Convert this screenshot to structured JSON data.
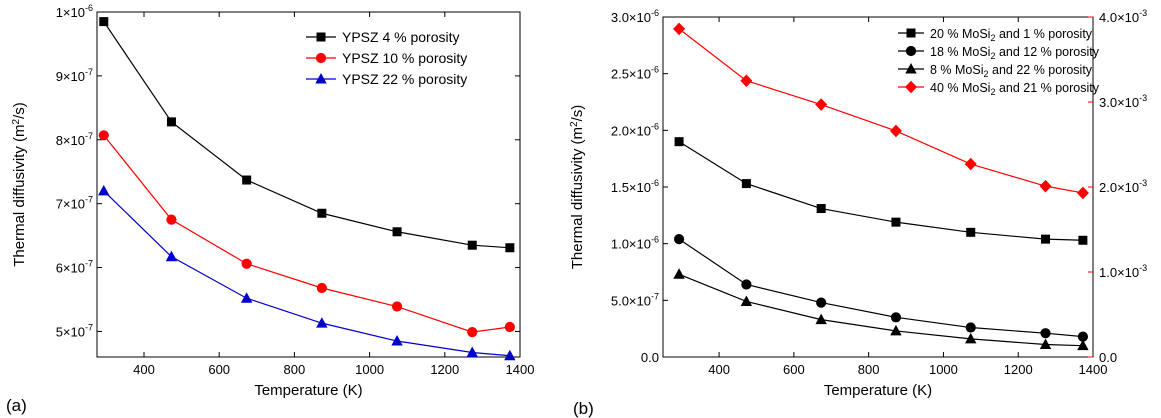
{
  "chart_data": [
    {
      "type": "line",
      "panel_label": "(a)",
      "xlabel": "Temperature (K)",
      "ylabel_main": "Thermal diffusivity (m",
      "ylabel_sup": "2",
      "ylabel_tail": "/s)",
      "xlim": [
        275,
        1400
      ],
      "ylim": [
        4.6e-07,
        1e-06
      ],
      "x_ticks": [
        400,
        600,
        800,
        1000,
        1200,
        1400
      ],
      "x_tick_labels": [
        "400",
        "600",
        "800",
        "1000",
        "1200",
        "1400"
      ],
      "y_ticks": [
        5e-07,
        6e-07,
        7e-07,
        8e-07,
        9e-07,
        1e-06
      ],
      "y_tick_mantissa": [
        "5×10",
        "6×10",
        "7×10",
        "8×10",
        "9×10",
        "1×10"
      ],
      "y_tick_exp": [
        "-7",
        "-7",
        "-7",
        "-7",
        "-7",
        "-6"
      ],
      "legend_position": "top-right",
      "series": [
        {
          "name": "YPSZ   4 % porosity",
          "color": "#000000",
          "marker": "square",
          "x": [
            293,
            473,
            673,
            873,
            1073,
            1273,
            1373
          ],
          "y": [
            9.85e-07,
            8.28e-07,
            7.37e-07,
            6.85e-07,
            6.56e-07,
            6.35e-07,
            6.31e-07
          ]
        },
        {
          "name": "YPSZ 10 % porosity",
          "color": "#ff0000",
          "marker": "circle",
          "x": [
            293,
            473,
            673,
            873,
            1073,
            1273,
            1373
          ],
          "y": [
            8.07e-07,
            6.75e-07,
            6.06e-07,
            5.68e-07,
            5.39e-07,
            4.99e-07,
            5.07e-07
          ]
        },
        {
          "name": "YPSZ 22 % porosity",
          "color": "#0000cc",
          "marker": "triangle",
          "x": [
            293,
            473,
            673,
            873,
            1073,
            1273,
            1373
          ],
          "y": [
            7.2e-07,
            6.17e-07,
            5.52e-07,
            5.13e-07,
            4.85e-07,
            4.67e-07,
            4.62e-07
          ]
        }
      ]
    },
    {
      "type": "line",
      "panel_label": "(b)",
      "xlabel": "Temperature (K)",
      "ylabel_main": "Thermal diffusivity (m",
      "ylabel_sup": "2",
      "ylabel_tail": "/s)",
      "xlim": [
        250,
        1400
      ],
      "ylim": [
        0,
        3e-06
      ],
      "y2lim": [
        0,
        0.004
      ],
      "x_ticks": [
        400,
        600,
        800,
        1000,
        1200,
        1400
      ],
      "x_tick_labels": [
        "400",
        "600",
        "800",
        "1000",
        "1200",
        "1400"
      ],
      "y_ticks": [
        0,
        5e-07,
        1e-06,
        1.5e-06,
        2e-06,
        2.5e-06,
        3e-06
      ],
      "y_tick_mantissa": [
        "0.0",
        "5.0×10",
        "1.0×10",
        "1.5×10",
        "2.0×10",
        "2.5×10",
        "3.0×10"
      ],
      "y_tick_exp": [
        "",
        "-7",
        "-6",
        "-6",
        "-6",
        "-6",
        "-6"
      ],
      "y2_ticks": [
        0,
        0.001,
        0.002,
        0.003,
        0.004
      ],
      "y2_tick_mantissa": [
        "0.0",
        "1.0×10",
        "2.0×10",
        "3.0×10",
        "4.0×10"
      ],
      "y2_tick_exp": [
        "",
        "-3",
        "-3",
        "-3",
        "-3"
      ],
      "y2_color": "#ff0000",
      "legend_position": "top-right",
      "series": [
        {
          "name_pre": "20 % MoSi",
          "name_sub": "2",
          "name_post": " and   1 % porosity",
          "color": "#000000",
          "marker": "square",
          "axis": "left",
          "x": [
            293,
            473,
            673,
            873,
            1073,
            1273,
            1373
          ],
          "y": [
            1.9e-06,
            1.53e-06,
            1.31e-06,
            1.19e-06,
            1.1e-06,
            1.04e-06,
            1.03e-06
          ]
        },
        {
          "name_pre": "18 % MoSi",
          "name_sub": "2",
          "name_post": " and 12 % porosity",
          "color": "#000000",
          "marker": "circle",
          "axis": "left",
          "x": [
            293,
            473,
            673,
            873,
            1073,
            1273,
            1373
          ],
          "y": [
            1.04e-06,
            6.4e-07,
            4.8e-07,
            3.5e-07,
            2.6e-07,
            2.1e-07,
            1.8e-07
          ]
        },
        {
          "name_pre": "  8 % MoSi",
          "name_sub": "2",
          "name_post": " and 22 % porosity",
          "color": "#000000",
          "marker": "triangle",
          "axis": "left",
          "x": [
            293,
            473,
            673,
            873,
            1073,
            1273,
            1373
          ],
          "y": [
            7.3e-07,
            4.9e-07,
            3.3e-07,
            2.3e-07,
            1.6e-07,
            1.1e-07,
            1e-07
          ]
        },
        {
          "name_pre": "40 % MoSi",
          "name_sub": "2",
          "name_post": " and 21 % porosity",
          "color": "#ff0000",
          "marker": "diamond",
          "axis": "right",
          "x": [
            293,
            473,
            673,
            873,
            1073,
            1273,
            1373
          ],
          "y": [
            0.00386,
            0.00325,
            0.00297,
            0.00266,
            0.00227,
            0.00201,
            0.00193
          ]
        }
      ]
    }
  ]
}
